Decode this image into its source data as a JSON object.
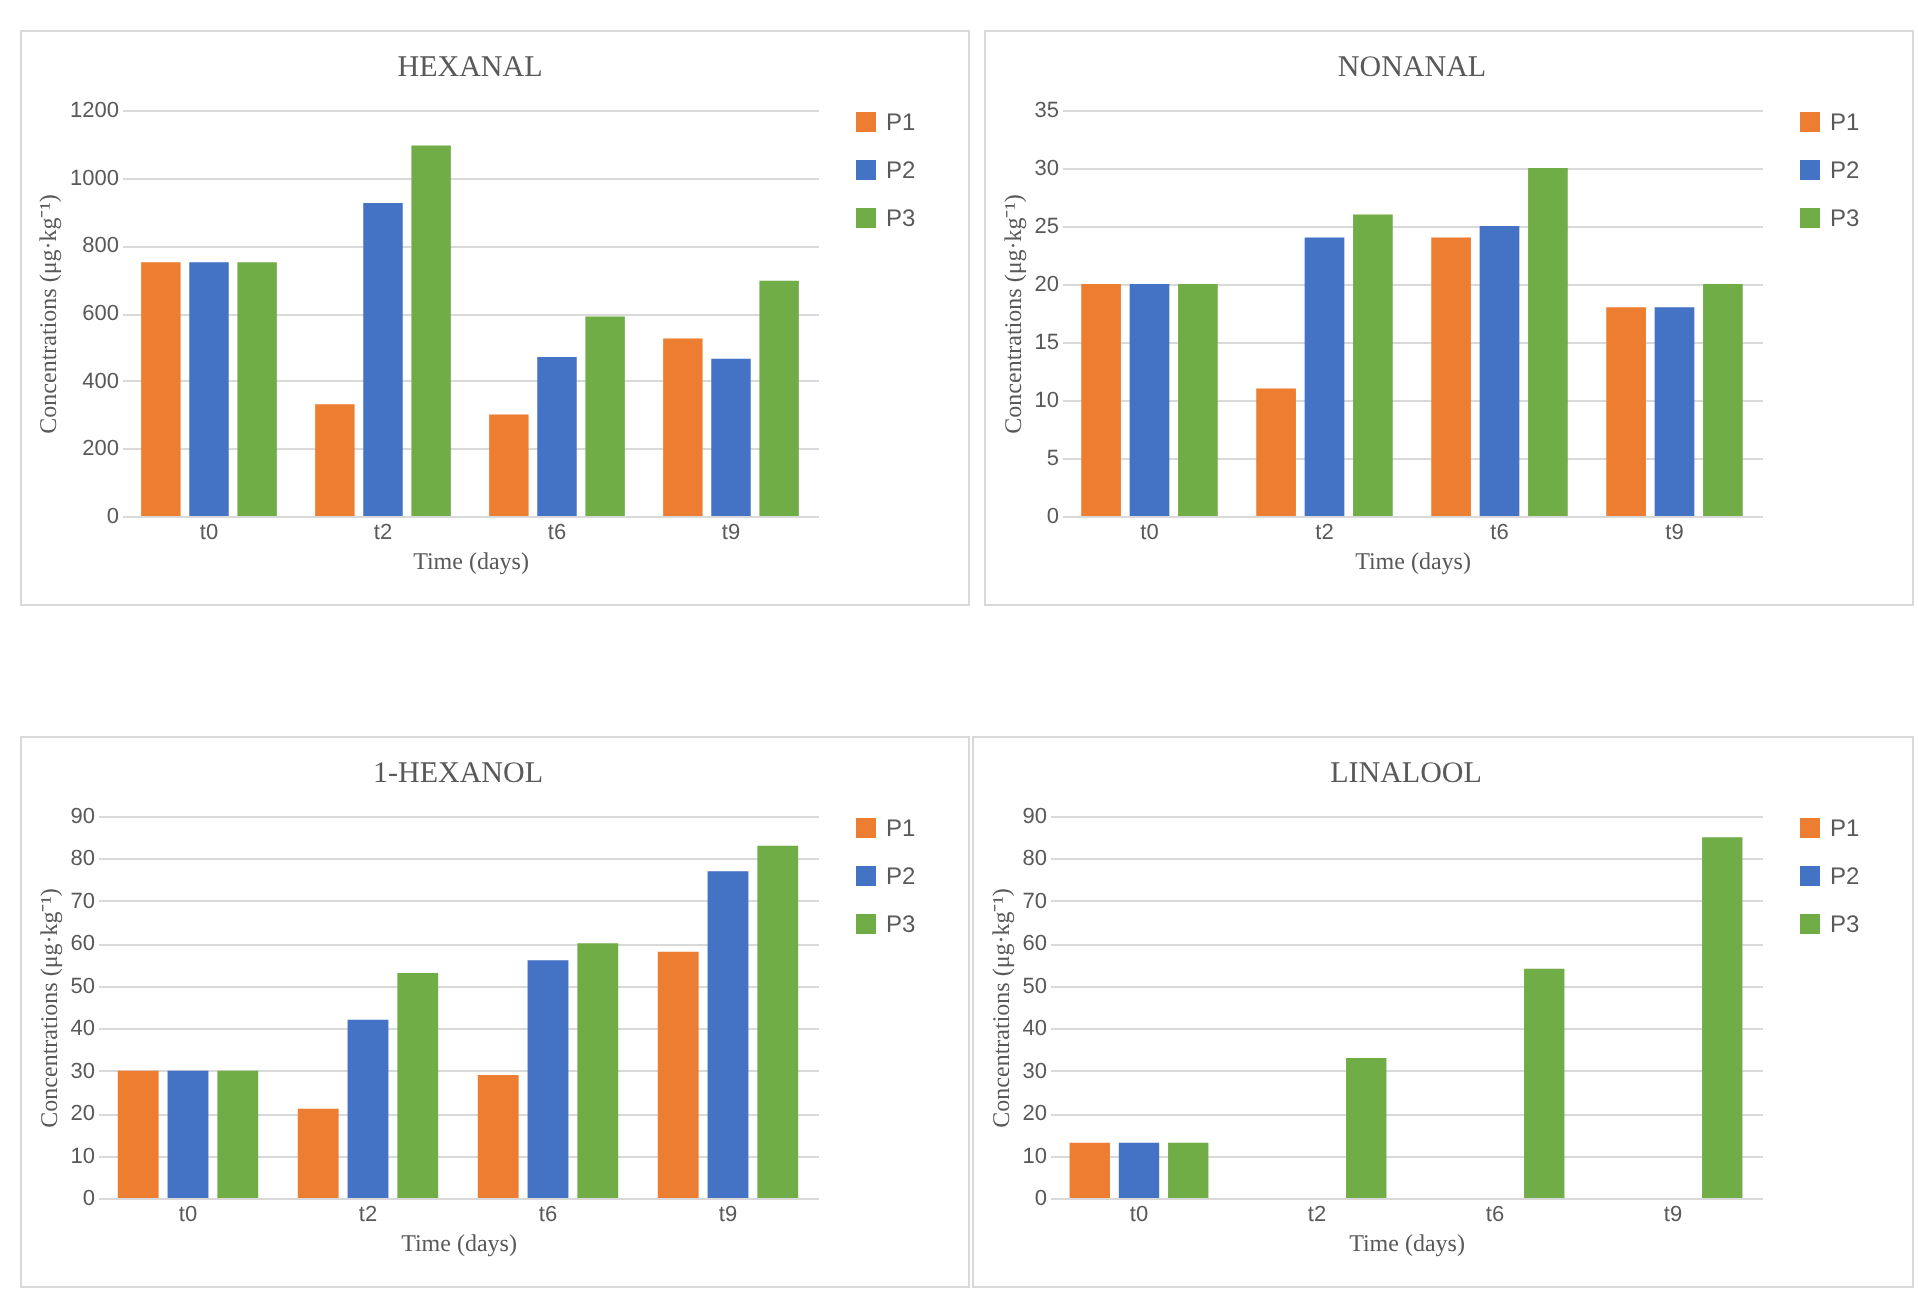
{
  "chart_data": [
    {
      "type": "bar",
      "title": "HEXANAL",
      "xlabel": "Time (days)",
      "ylabel": "Concentrations (μg·kg⁻¹)",
      "categories": [
        "t0",
        "t2",
        "t6",
        "t9"
      ],
      "ylim": [
        0,
        1200
      ],
      "yticks": [
        0,
        200,
        400,
        600,
        800,
        1000,
        1200
      ],
      "grid": "y",
      "legend": "right",
      "series": [
        {
          "name": "P1",
          "color": "#ed7d31",
          "values": [
            750,
            330,
            300,
            525
          ]
        },
        {
          "name": "P2",
          "color": "#4472c4",
          "values": [
            750,
            925,
            470,
            465
          ]
        },
        {
          "name": "P3",
          "color": "#70ad47",
          "values": [
            750,
            1095,
            590,
            695
          ]
        }
      ]
    },
    {
      "type": "bar",
      "title": "NONANAL",
      "xlabel": "Time (days)",
      "ylabel": "Concentrations (μg·kg⁻¹)",
      "categories": [
        "t0",
        "t2",
        "t6",
        "t9"
      ],
      "ylim": [
        0,
        35
      ],
      "yticks": [
        0,
        5,
        10,
        15,
        20,
        25,
        30,
        35
      ],
      "grid": "y",
      "legend": "right",
      "series": [
        {
          "name": "P1",
          "color": "#ed7d31",
          "values": [
            20,
            11,
            24,
            18
          ]
        },
        {
          "name": "P2",
          "color": "#4472c4",
          "values": [
            20,
            24,
            25,
            18
          ]
        },
        {
          "name": "P3",
          "color": "#70ad47",
          "values": [
            20,
            26,
            30,
            20
          ]
        }
      ]
    },
    {
      "type": "bar",
      "title": "1-HEXANOL",
      "xlabel": "Time (days)",
      "ylabel": "Concentrations (μg·kg⁻¹)",
      "categories": [
        "t0",
        "t2",
        "t6",
        "t9"
      ],
      "ylim": [
        0,
        90
      ],
      "yticks": [
        0,
        10,
        20,
        30,
        40,
        50,
        60,
        70,
        80,
        90
      ],
      "grid": "y",
      "legend": "right",
      "series": [
        {
          "name": "P1",
          "color": "#ed7d31",
          "values": [
            30,
            21,
            29,
            58
          ]
        },
        {
          "name": "P2",
          "color": "#4472c4",
          "values": [
            30,
            42,
            56,
            77
          ]
        },
        {
          "name": "P3",
          "color": "#70ad47",
          "values": [
            30,
            53,
            60,
            83
          ]
        }
      ]
    },
    {
      "type": "bar",
      "title": "LINALOOL",
      "xlabel": "Time (days)",
      "ylabel": "Concentrations (μg·kg⁻¹)",
      "categories": [
        "t0",
        "t2",
        "t6",
        "t9"
      ],
      "ylim": [
        0,
        90
      ],
      "yticks": [
        0,
        10,
        20,
        30,
        40,
        50,
        60,
        70,
        80,
        90
      ],
      "grid": "y",
      "legend": "right",
      "series": [
        {
          "name": "P1",
          "color": "#ed7d31",
          "values": [
            13,
            0,
            0,
            0
          ]
        },
        {
          "name": "P2",
          "color": "#4472c4",
          "values": [
            13,
            0,
            0,
            0
          ]
        },
        {
          "name": "P3",
          "color": "#70ad47",
          "values": [
            13,
            33,
            54,
            85
          ]
        }
      ]
    }
  ]
}
